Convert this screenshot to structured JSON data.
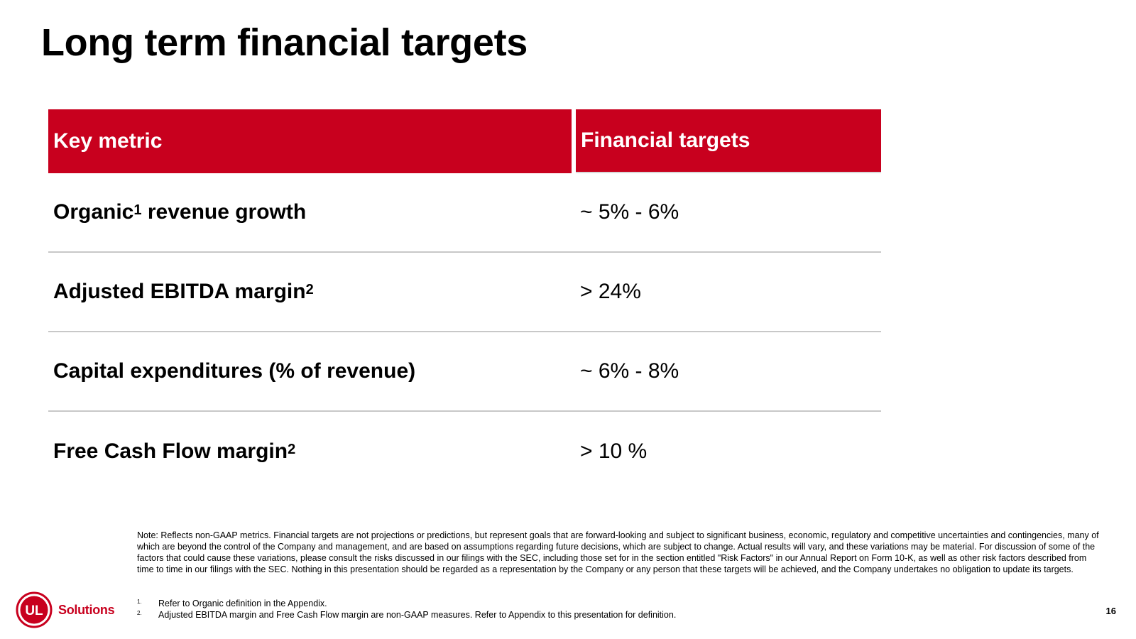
{
  "slide": {
    "title": "Long term financial targets",
    "page_number": "16"
  },
  "table": {
    "headers": {
      "metric": "Key metric",
      "target": "Financial targets"
    },
    "rows": [
      {
        "metric": "Organic",
        "metric_sup": "1",
        "metric_suffix": " revenue growth",
        "target": "~ 5% - 6%"
      },
      {
        "metric": "Adjusted EBITDA margin",
        "metric_sup": "2",
        "metric_suffix": "",
        "target": "> 24%"
      },
      {
        "metric": "Capital expenditures (% of revenue)",
        "metric_sup": "",
        "metric_suffix": "",
        "target": "~ 6% - 8%"
      },
      {
        "metric": "Free Cash Flow margin",
        "metric_sup": "2",
        "metric_suffix": "",
        "target": "> 10 %"
      }
    ]
  },
  "note": "Note: Reflects non-GAAP metrics.  Financial targets are not projections or predictions, but represent goals that are forward-looking and subject to significant business, economic, regulatory and competitive uncertainties and contingencies, many of which are beyond the control of the Company and management, and are based on assumptions regarding future decisions, which are subject to change. Actual results will vary, and these variations may be material. For discussion of some of the factors that could cause these variations, please consult the risks discussed in our filings with the SEC, including those set for in the section entitled \"Risk Factors\" in our Annual Report on Form 10-K, as well as other risk factors described from time to time in our filings with the SEC. Nothing in this presentation should be regarded as a representation by the Company or any person that these targets will be achieved, and the Company undertakes no obligation to update its targets.",
  "footnotes": [
    {
      "number": "1.",
      "text": "Refer to Organic definition in the Appendix."
    },
    {
      "number": "2.",
      "text": "Adjusted EBITDA margin and Free Cash Flow margin are non-GAAP measures.  Refer to Appendix to this presentation for definition."
    }
  ],
  "logo": {
    "mark": "UL",
    "text": "Solutions",
    "color": "#c8001e"
  },
  "colors": {
    "accent": "#c8001e",
    "divider": "#c8c8c8"
  }
}
